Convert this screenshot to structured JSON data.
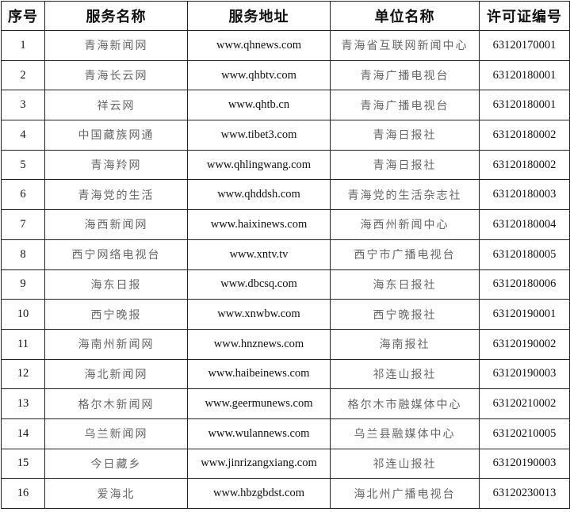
{
  "headers": [
    "序号",
    "服务名称",
    "服务地址",
    "单位名称",
    "许可证编号"
  ],
  "rows": [
    [
      "1",
      "青海新闻网",
      "www.qhnews.com",
      "青海省互联网新闻中心",
      "63120170001"
    ],
    [
      "2",
      "青海长云网",
      "www.qhbtv.com",
      "青海广播电视台",
      "63120180001"
    ],
    [
      "3",
      "祥云网",
      "www.qhtb.cn",
      "青海广播电视台",
      "63120180001"
    ],
    [
      "4",
      "中国藏族网通",
      "www.tibet3.com",
      "青海日报社",
      "63120180002"
    ],
    [
      "5",
      "青海羚网",
      "www.qhlingwang.com",
      "青海日报社",
      "63120180002"
    ],
    [
      "6",
      "青海党的生活",
      "www.qhddsh.com",
      "青海党的生活杂志社",
      "63120180003"
    ],
    [
      "7",
      "海西新闻网",
      "www.haixinews.com",
      "海西州新闻中心",
      "63120180004"
    ],
    [
      "8",
      "西宁网络电视台",
      "www.xntv.tv",
      "西宁市广播电视台",
      "63120180005"
    ],
    [
      "9",
      "海东日报",
      "www.dbcsq.com",
      "海东日报社",
      "63120180006"
    ],
    [
      "10",
      "西宁晚报",
      "www.xnwbw.com",
      "西宁晚报社",
      "63120190001"
    ],
    [
      "11",
      "海南州新闻网",
      "www.hnznews.com",
      "海南报社",
      "63120190002"
    ],
    [
      "12",
      "海北新闻网",
      "www.haibeinews.com",
      "祁连山报社",
      "63120190003"
    ],
    [
      "13",
      "格尔木新闻网",
      "www.geermunews.com",
      "格尔木市融媒体中心",
      "63120210002"
    ],
    [
      "14",
      "乌兰新闻网",
      "www.wulannews.com",
      "乌兰县融媒体中心",
      "63120210005"
    ],
    [
      "15",
      "今日藏乡",
      "www.jinrizangxiang.com",
      "祁连山报社",
      "63120190003"
    ],
    [
      "16",
      "爱海北",
      "www.hbzgbdst.com",
      "海北州广播电视台",
      "63120230013"
    ]
  ]
}
